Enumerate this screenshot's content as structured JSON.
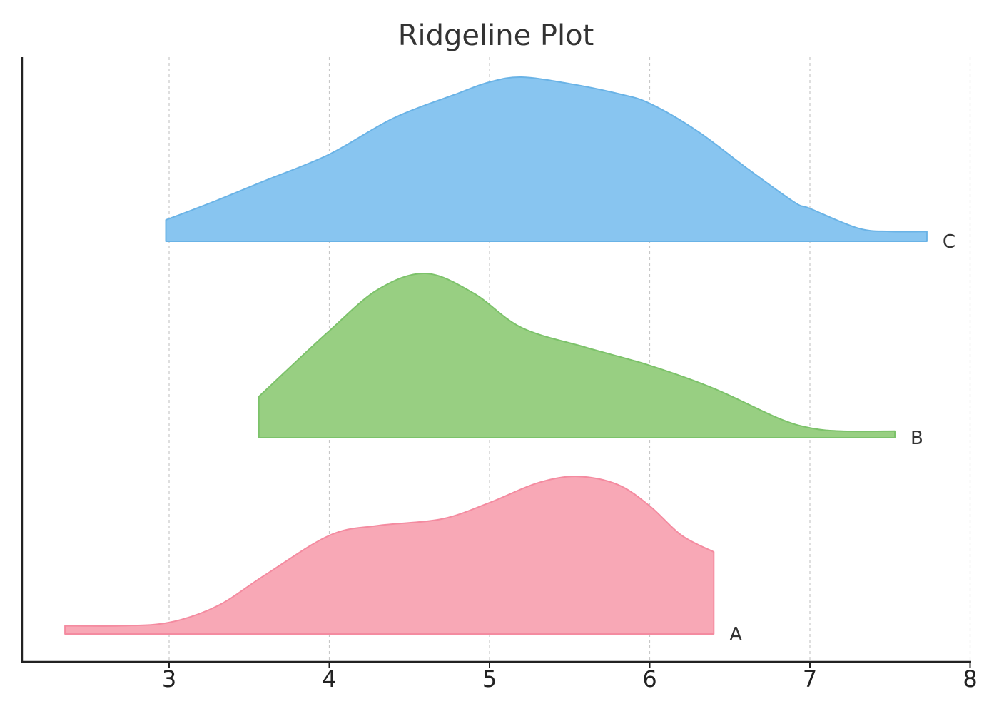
{
  "chart_data": {
    "type": "area",
    "title": "Ridgeline Plot",
    "xlabel": "",
    "ylabel": "",
    "xlim": [
      2.1,
      8.0
    ],
    "xticks": [
      3,
      4,
      5,
      6,
      7,
      8
    ],
    "grid": "vertical dashed at x ticks",
    "series": [
      {
        "name": "A",
        "color": "#f48ba0",
        "fill": "#f8a8b6",
        "x": [
          2.35,
          2.7,
          3.0,
          3.3,
          3.6,
          4.0,
          4.3,
          4.7,
          5.0,
          5.3,
          5.55,
          5.8,
          6.0,
          6.2,
          6.4
        ],
        "density": [
          0.05,
          0.05,
          0.07,
          0.17,
          0.36,
          0.6,
          0.66,
          0.7,
          0.8,
          0.92,
          0.96,
          0.91,
          0.78,
          0.6,
          0.5
        ]
      },
      {
        "name": "B",
        "color": "#7cc26a",
        "fill": "#98cf82",
        "x": [
          3.56,
          3.8,
          4.0,
          4.3,
          4.6,
          4.9,
          5.2,
          5.6,
          6.0,
          6.4,
          6.8,
          7.0,
          7.2,
          7.53
        ],
        "density": [
          0.25,
          0.47,
          0.65,
          0.9,
          1.0,
          0.88,
          0.67,
          0.55,
          0.44,
          0.3,
          0.12,
          0.06,
          0.04,
          0.04
        ]
      },
      {
        "name": "C",
        "color": "#6ab3e6",
        "fill": "#88c5f0",
        "x": [
          2.98,
          3.3,
          3.6,
          4.0,
          4.4,
          4.8,
          5.0,
          5.2,
          5.5,
          5.8,
          6.0,
          6.3,
          6.6,
          6.9,
          7.0,
          7.3,
          7.5,
          7.73
        ],
        "density": [
          0.13,
          0.25,
          0.37,
          0.53,
          0.75,
          0.9,
          0.97,
          1.0,
          0.96,
          0.9,
          0.84,
          0.67,
          0.45,
          0.24,
          0.2,
          0.08,
          0.06,
          0.06
        ]
      }
    ]
  }
}
